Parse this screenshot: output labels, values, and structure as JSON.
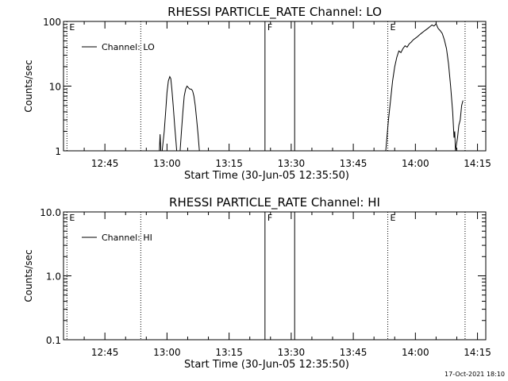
{
  "footer": {
    "timestamp": "17-Oct-2021 18:10"
  },
  "chart_data": [
    {
      "type": "line",
      "title": "RHESSI PARTICLE_RATE Channel: LO",
      "xlabel": "Start Time (30-Jun-05 12:35:50)",
      "ylabel": "Counts/sec",
      "yscale": "log",
      "ylim": [
        1,
        100
      ],
      "xlim_minutes_after_1235": [
        0,
        102
      ],
      "x_tick_labels": [
        "12:45",
        "13:00",
        "13:15",
        "13:30",
        "13:45",
        "14:00",
        "14:15"
      ],
      "x_ticks_time": [
        "12:45",
        "13:00",
        "13:15",
        "13:30",
        "13:45",
        "14:00",
        "14:15"
      ],
      "y_tick_labels": [
        "1",
        "10",
        "100"
      ],
      "y_ticks": [
        1,
        10,
        100
      ],
      "legend": {
        "position": "top-left",
        "entries": [
          "Channel: LO"
        ]
      },
      "markers": [
        {
          "time": "12:35:50",
          "label": "E",
          "style": "dotted"
        },
        {
          "time": "12:53:40",
          "label": "",
          "style": "dotted"
        },
        {
          "time": "13:23:40",
          "label": "F",
          "style": "solid"
        },
        {
          "time": "13:30:50",
          "label": "",
          "style": "solid"
        },
        {
          "time": "13:53:20",
          "label": "E",
          "style": "dotted"
        },
        {
          "time": "14:12:00",
          "label": "",
          "style": "dotted"
        }
      ],
      "series": [
        {
          "name": "Channel: LO",
          "points": [
            [
              "12:58:10",
              1
            ],
            [
              "12:58:20",
              1.8
            ],
            [
              "12:58:30",
              1
            ],
            [
              "12:58:50",
              1
            ],
            [
              "12:59:20",
              2
            ],
            [
              "12:59:40",
              4
            ],
            [
              "13:00:00",
              8
            ],
            [
              "13:00:20",
              12
            ],
            [
              "13:00:40",
              14
            ],
            [
              "13:00:55",
              13
            ],
            [
              "13:01:10",
              9
            ],
            [
              "13:01:30",
              5
            ],
            [
              "13:01:50",
              2.5
            ],
            [
              "13:02:10",
              1.4
            ],
            [
              "13:02:20",
              1
            ],
            [
              "13:03:10",
              1
            ],
            [
              "13:03:30",
              2
            ],
            [
              "13:03:50",
              4
            ],
            [
              "13:04:10",
              7
            ],
            [
              "13:04:30",
              9
            ],
            [
              "13:04:50",
              10
            ],
            [
              "13:05:10",
              9.5
            ],
            [
              "13:05:30",
              9
            ],
            [
              "13:05:50",
              9
            ],
            [
              "13:06:10",
              8.5
            ],
            [
              "13:06:30",
              7
            ],
            [
              "13:06:50",
              5
            ],
            [
              "13:07:10",
              3
            ],
            [
              "13:07:30",
              1.8
            ],
            [
              "13:07:50",
              1
            ],
            [
              "13:52:50",
              1
            ],
            [
              "13:53:30",
              3
            ],
            [
              "13:54:00",
              6
            ],
            [
              "13:54:30",
              12
            ],
            [
              "13:55:00",
              20
            ],
            [
              "13:55:30",
              28
            ],
            [
              "13:56:00",
              35
            ],
            [
              "13:56:30",
              33
            ],
            [
              "13:57:00",
              38
            ],
            [
              "13:57:30",
              42
            ],
            [
              "13:58:00",
              40
            ],
            [
              "13:58:30",
              45
            ],
            [
              "13:59:00",
              48
            ],
            [
              "13:59:30",
              52
            ],
            [
              "14:00:00",
              55
            ],
            [
              "14:00:30",
              58
            ],
            [
              "14:01:00",
              62
            ],
            [
              "14:01:30",
              66
            ],
            [
              "14:02:00",
              70
            ],
            [
              "14:02:30",
              74
            ],
            [
              "14:03:00",
              78
            ],
            [
              "14:03:30",
              83
            ],
            [
              "14:04:00",
              88
            ],
            [
              "14:04:30",
              85
            ],
            [
              "14:05:00",
              92
            ],
            [
              "14:05:30",
              78
            ],
            [
              "14:06:00",
              72
            ],
            [
              "14:06:30",
              65
            ],
            [
              "14:07:00",
              52
            ],
            [
              "14:07:30",
              38
            ],
            [
              "14:08:00",
              22
            ],
            [
              "14:08:30",
              10
            ],
            [
              "14:09:00",
              4
            ],
            [
              "14:09:20",
              1.6
            ],
            [
              "14:09:30",
              2
            ],
            [
              "14:09:40",
              1
            ],
            [
              "14:10:10",
              1.6
            ],
            [
              "14:10:30",
              2.5
            ],
            [
              "14:10:50",
              3
            ],
            [
              "14:11:10",
              5
            ],
            [
              "14:11:30",
              6
            ]
          ]
        }
      ]
    },
    {
      "type": "line",
      "title": "RHESSI PARTICLE_RATE Channel: HI",
      "xlabel": "Start Time (30-Jun-05 12:35:50)",
      "ylabel": "Counts/sec",
      "yscale": "log",
      "ylim": [
        0.1,
        10
      ],
      "xlim_minutes_after_1235": [
        0,
        102
      ],
      "x_tick_labels": [
        "12:45",
        "13:00",
        "13:15",
        "13:30",
        "13:45",
        "14:00",
        "14:15"
      ],
      "x_ticks_time": [
        "12:45",
        "13:00",
        "13:15",
        "13:30",
        "13:45",
        "14:00",
        "14:15"
      ],
      "y_tick_labels": [
        "0.1",
        "1.0",
        "10.0"
      ],
      "y_ticks": [
        0.1,
        1,
        10
      ],
      "legend": {
        "position": "top-left",
        "entries": [
          "Channel: HI"
        ]
      },
      "markers": [
        {
          "time": "12:35:50",
          "label": "E",
          "style": "dotted"
        },
        {
          "time": "12:53:40",
          "label": "",
          "style": "dotted"
        },
        {
          "time": "13:23:40",
          "label": "F",
          "style": "solid"
        },
        {
          "time": "13:30:50",
          "label": "",
          "style": "solid"
        },
        {
          "time": "13:53:20",
          "label": "E",
          "style": "dotted"
        },
        {
          "time": "14:12:00",
          "label": "",
          "style": "dotted"
        }
      ],
      "series": [
        {
          "name": "Channel: HI",
          "points": []
        }
      ]
    }
  ]
}
